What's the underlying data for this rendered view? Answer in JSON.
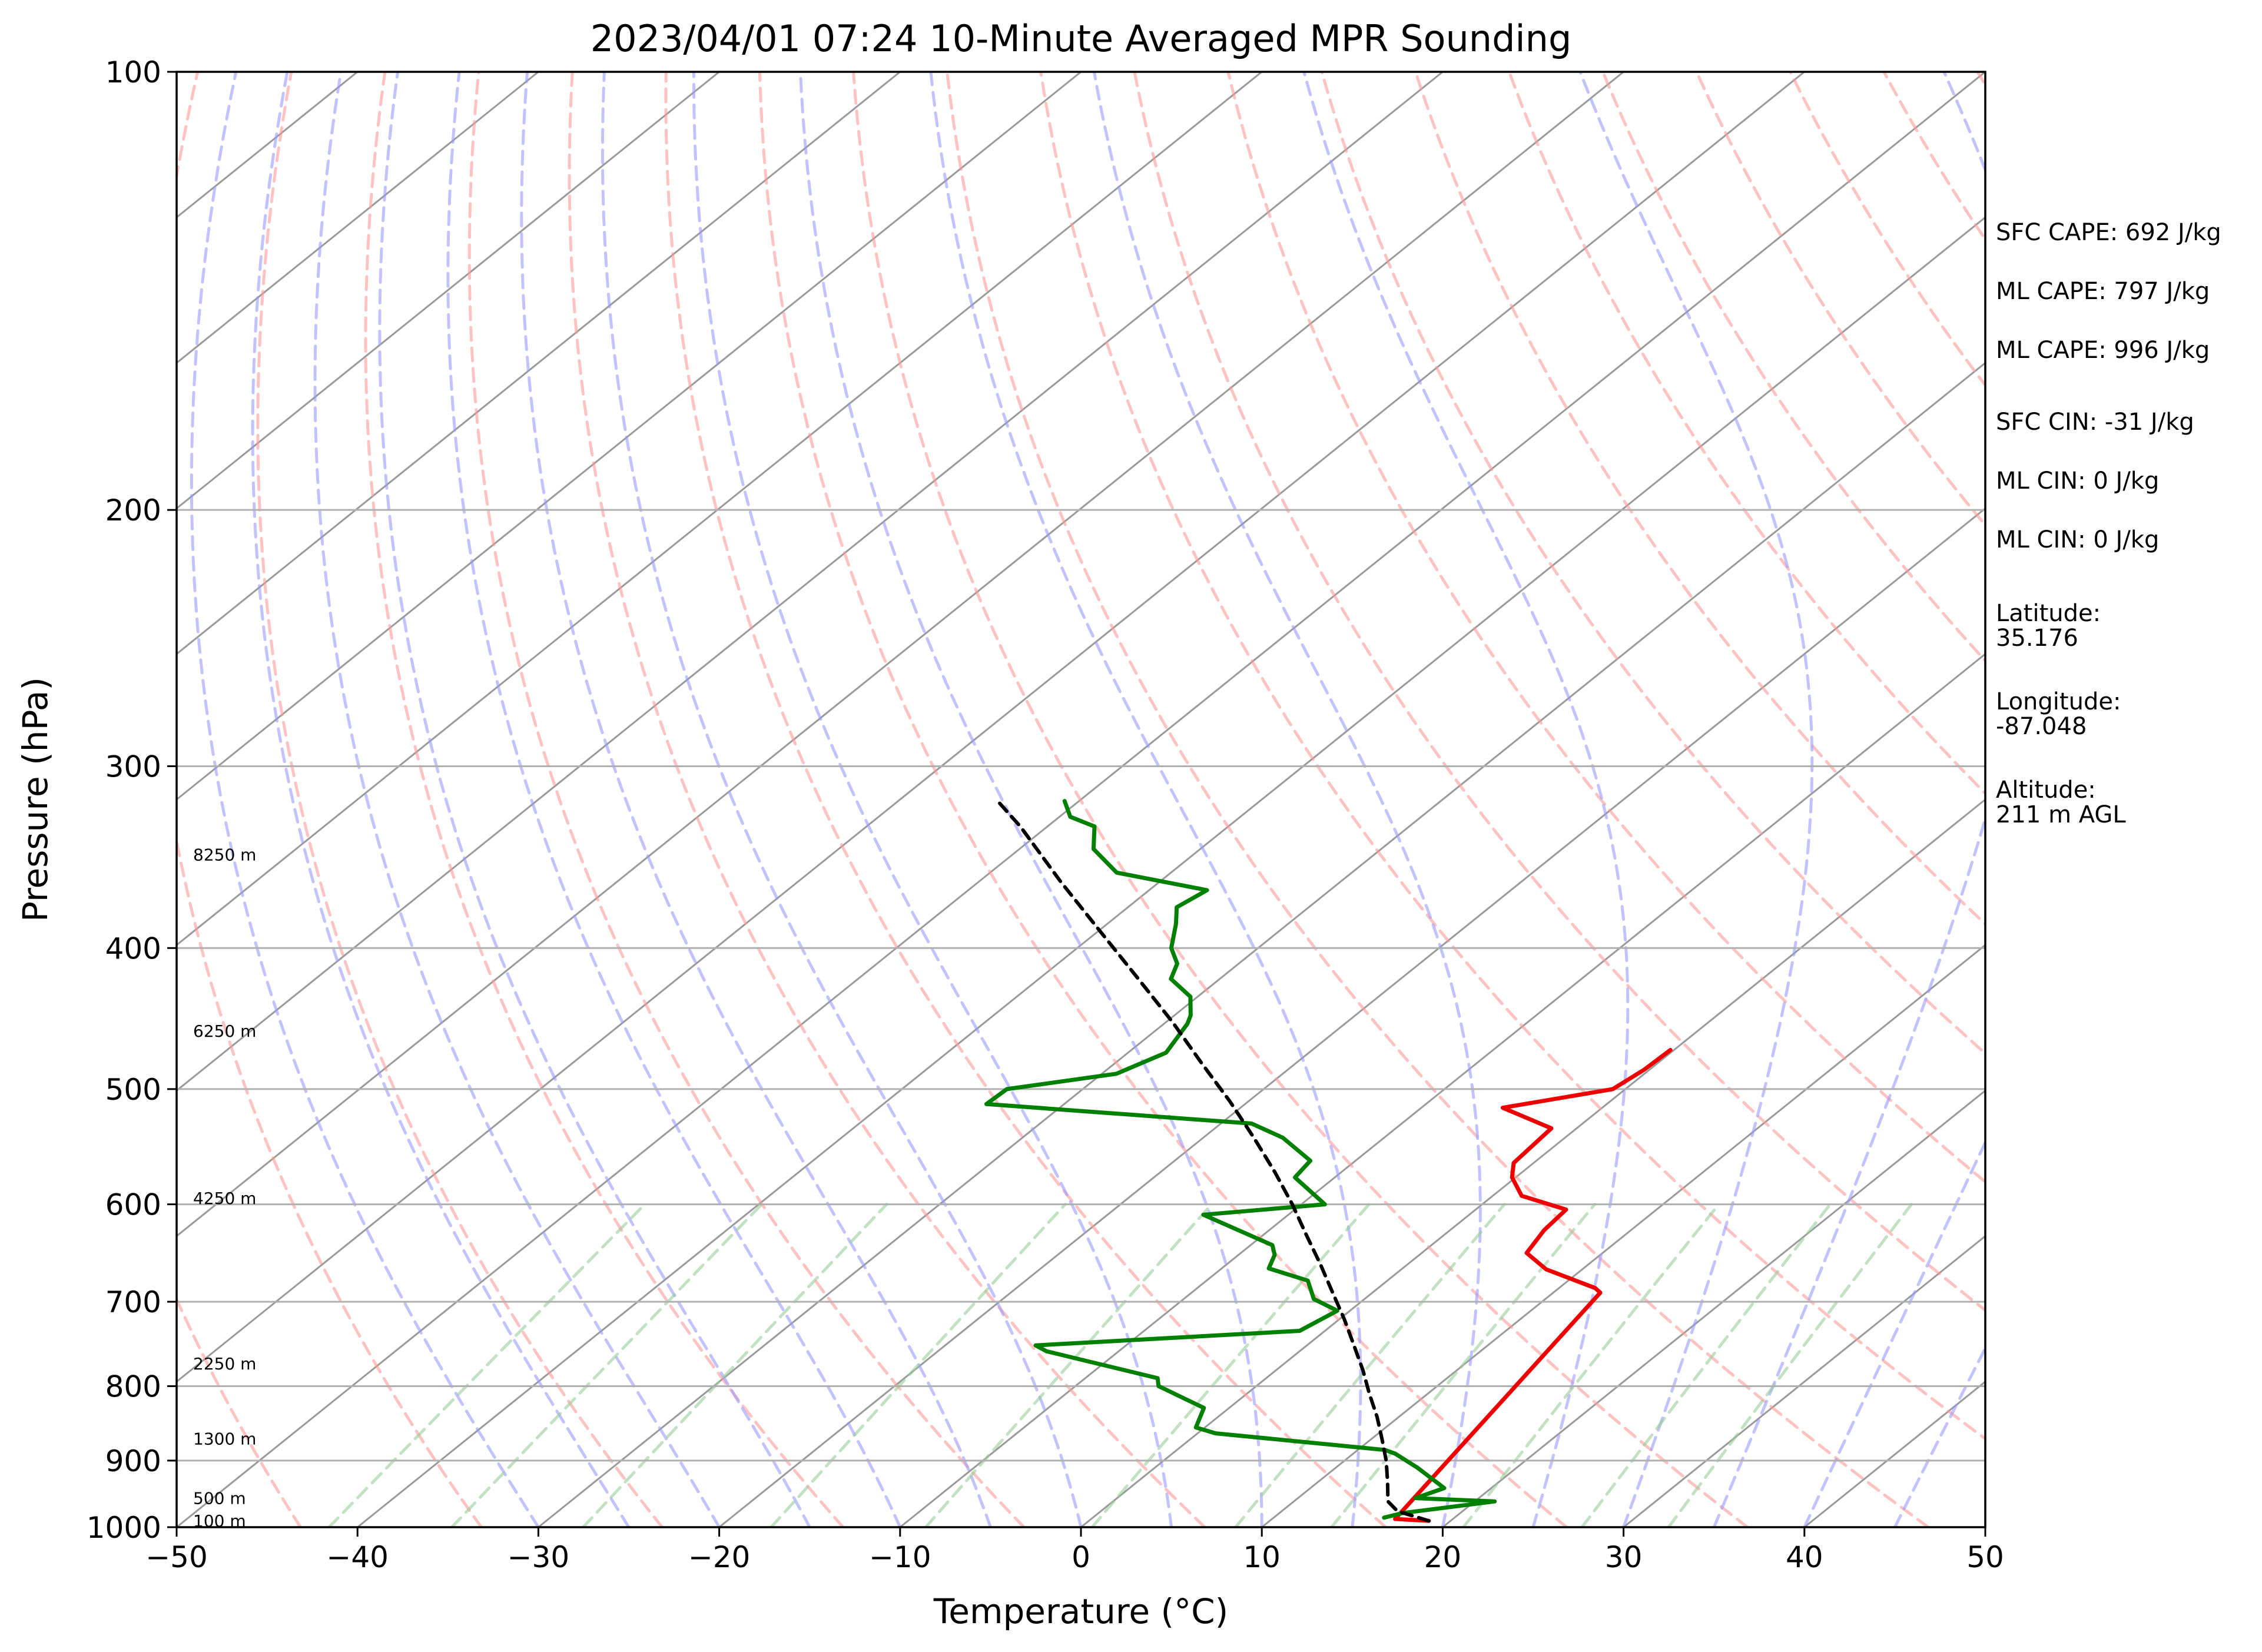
{
  "chart_data": {
    "type": "line",
    "title": "2023/04/01 07:24 10-Minute Averaged MPR Sounding",
    "xlabel": "Temperature (°C)",
    "ylabel": "Pressure (hPa)",
    "xlim": [
      -50,
      50
    ],
    "ylim": [
      1000,
      100
    ],
    "y_scale": "log",
    "grid": true,
    "x_ticks": [
      -50,
      -40,
      -30,
      -20,
      -10,
      0,
      10,
      20,
      30,
      40,
      50
    ],
    "x_tick_labels": [
      "−50",
      "−40",
      "−30",
      "−20",
      "−10",
      "0",
      "10",
      "20",
      "30",
      "40",
      "50"
    ],
    "y_ticks": [
      100,
      200,
      300,
      400,
      500,
      600,
      700,
      800,
      900,
      1000
    ],
    "y_tick_labels": [
      "100",
      "200",
      "300",
      "400",
      "500",
      "600",
      "700",
      "800",
      "900",
      "1000"
    ],
    "background_lines": {
      "isotherms": {
        "color": "#999999",
        "style": "solid",
        "values": [
          -150,
          -140,
          -130,
          -120,
          -110,
          -100,
          -90,
          -80,
          -70,
          -60,
          -50,
          -40,
          -30,
          -20,
          -10,
          0,
          10,
          20,
          30,
          40,
          50
        ]
      },
      "dry_adiabats": {
        "color": "#ff9999",
        "style": "dashed",
        "theta_k": [
          220,
          230,
          240,
          250,
          260,
          270,
          280,
          290,
          300,
          310,
          320,
          330,
          340,
          350,
          360,
          370,
          380,
          390,
          400,
          410,
          420,
          430,
          440,
          450
        ]
      },
      "moist_adiabats": {
        "color": "#9999ff",
        "style": "dashed",
        "start_temps_c_at_1000": [
          -30,
          -25,
          -20,
          -15,
          -10,
          -5,
          0,
          5,
          10,
          15,
          20,
          25,
          30,
          35,
          40,
          45,
          50
        ]
      },
      "mixing_ratio_lines": {
        "color": "#99cc99",
        "style": "dashed",
        "top_hpa": 600,
        "g_per_kg": [
          0.1,
          0.2,
          0.4,
          1,
          2,
          4,
          7,
          10,
          16,
          24,
          32
        ]
      }
    },
    "height_labels": [
      {
        "label": "8250 m",
        "pressure": 345
      },
      {
        "label": "6250 m",
        "pressure": 456
      },
      {
        "label": "4250 m",
        "pressure": 594
      },
      {
        "label": "2250 m",
        "pressure": 772
      },
      {
        "label": "1300 m",
        "pressure": 869
      },
      {
        "label": "500 m",
        "pressure": 955
      },
      {
        "label": "100 m",
        "pressure": 990
      }
    ],
    "series": [
      {
        "key": "temperature",
        "color": "#ee0000",
        "style": "solid",
        "points": [
          [
            18.8,
            990
          ],
          [
            16.8,
            987
          ],
          [
            12.6,
            690
          ],
          [
            12.0,
            685
          ],
          [
            8.0,
            665
          ],
          [
            5.8,
            648
          ],
          [
            5.2,
            625
          ],
          [
            5.0,
            605
          ],
          [
            1.6,
            592
          ],
          [
            -0.2,
            575
          ],
          [
            -1.1,
            562
          ],
          [
            -1.4,
            532
          ],
          [
            -5.5,
            515
          ],
          [
            -0.7,
            500
          ],
          [
            -0.3,
            485
          ],
          [
            -0.2,
            470
          ]
        ]
      },
      {
        "key": "dewpoint",
        "color": "#008000",
        "style": "solid",
        "points": [
          [
            16.1,
            985
          ],
          [
            16.8,
            978
          ],
          [
            21.1,
            960
          ],
          [
            16.5,
            955
          ],
          [
            17.4,
            940
          ],
          [
            14.5,
            910
          ],
          [
            12.3,
            890
          ],
          [
            11.5,
            885
          ],
          [
            1.0,
            862
          ],
          [
            -0.5,
            854
          ],
          [
            -1.4,
            828
          ],
          [
            -5.4,
            800
          ],
          [
            -6.0,
            790
          ],
          [
            -14.0,
            757
          ],
          [
            -15.0,
            750
          ],
          [
            -1.4,
            733
          ],
          [
            -0.7,
            710
          ],
          [
            -2.8,
            697
          ],
          [
            -4.4,
            677
          ],
          [
            -7.4,
            664
          ],
          [
            -8.0,
            650
          ],
          [
            -8.8,
            640
          ],
          [
            -14.7,
            610
          ],
          [
            -8.7,
            600
          ],
          [
            -12.2,
            575
          ],
          [
            -12.5,
            560
          ],
          [
            -15.6,
            540
          ],
          [
            -18.3,
            528
          ],
          [
            -34.3,
            512
          ],
          [
            -34.2,
            500
          ],
          [
            -29.2,
            488
          ],
          [
            -27.9,
            472
          ],
          [
            -28.7,
            451
          ],
          [
            -29.1,
            445
          ],
          [
            -30.4,
            432
          ],
          [
            -32.7,
            420
          ],
          [
            -33.4,
            410
          ],
          [
            -34.8,
            400
          ],
          [
            -36.2,
            385
          ],
          [
            -37.3,
            375
          ],
          [
            -36.8,
            365
          ],
          [
            -43.0,
            355
          ],
          [
            -45.9,
            342
          ],
          [
            -47.4,
            330
          ],
          [
            -49.4,
            325
          ],
          [
            -50.8,
            317
          ]
        ]
      },
      {
        "key": "parcel",
        "color": "#000000",
        "style": "dashed",
        "points": [
          [
            18.8,
            990
          ],
          [
            16.4,
            975
          ],
          [
            15.2,
            960
          ],
          [
            13.8,
            930
          ],
          [
            12.3,
            900
          ],
          [
            10.6,
            870
          ],
          [
            8.8,
            840
          ],
          [
            6.8,
            810
          ],
          [
            4.8,
            780
          ],
          [
            2.6,
            750
          ],
          [
            0.3,
            720
          ],
          [
            -2.2,
            690
          ],
          [
            -4.8,
            660
          ],
          [
            -7.6,
            630
          ],
          [
            -10.5,
            600
          ],
          [
            -13.7,
            570
          ],
          [
            -17.2,
            540
          ],
          [
            -21.0,
            510
          ],
          [
            -25.2,
            480
          ],
          [
            -29.6,
            450
          ],
          [
            -34.5,
            420
          ],
          [
            -39.8,
            390
          ],
          [
            -45.5,
            360
          ],
          [
            -51.5,
            330
          ],
          [
            -54.5,
            317
          ]
        ]
      }
    ],
    "annotations": [
      "SFC CAPE: 692 J/kg",
      "ML CAPE: 797 J/kg",
      "ML CAPE: 996 J/kg",
      "SFC CIN: -31 J/kg",
      "ML CIN: 0 J/kg",
      "ML CIN: 0 J/kg",
      "Latitude:\n35.176",
      "Longitude:\n-87.048",
      "Altitude:\n211 m AGL"
    ]
  }
}
